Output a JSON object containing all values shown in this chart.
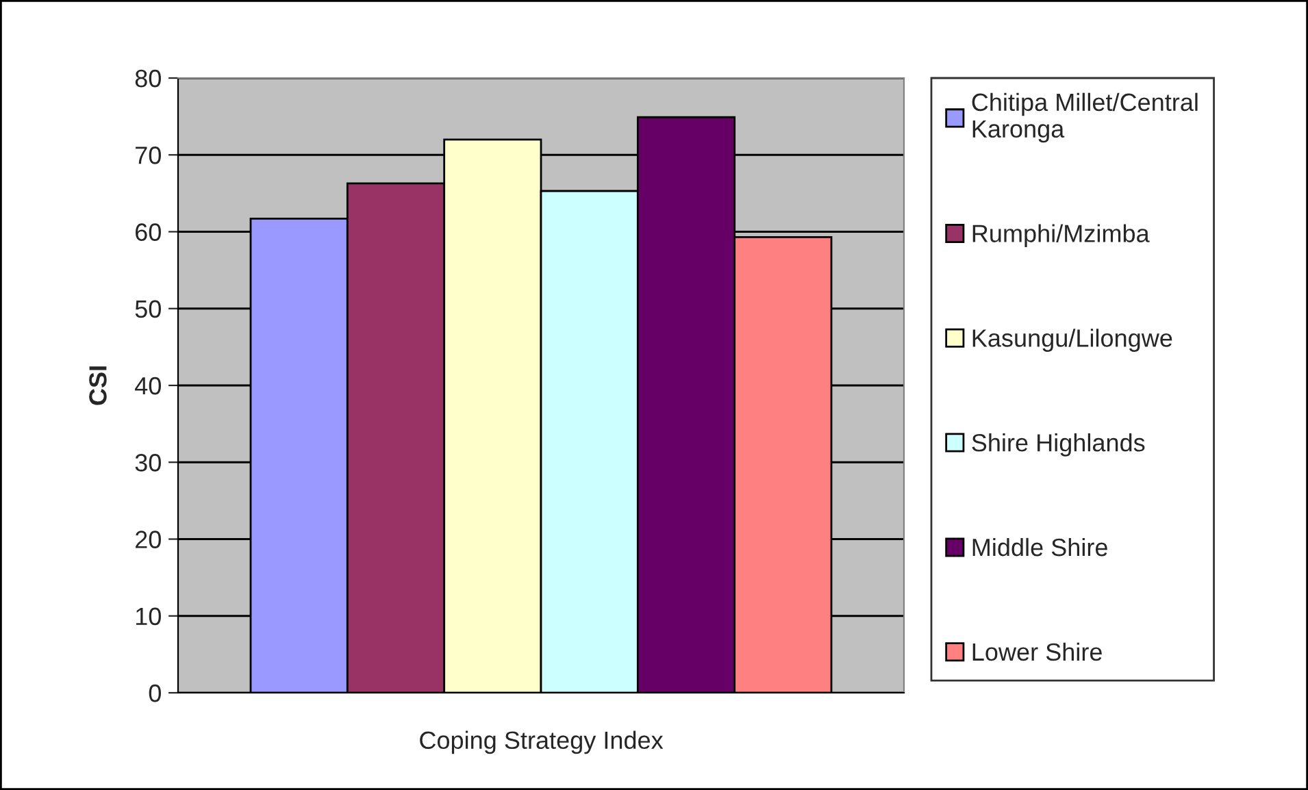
{
  "chart_data": {
    "type": "bar",
    "ylabel": "CSI",
    "categories": [
      "Coping Strategy Index"
    ],
    "series": [
      {
        "name": "Chitipa Millet/Central Karonga",
        "color": "#9999ff",
        "values": [
          61.7
        ]
      },
      {
        "name": "Rumphi/Mzimba",
        "color": "#993366",
        "values": [
          66.3
        ]
      },
      {
        "name": "Kasungu/Lilongwe",
        "color": "#ffffcc",
        "values": [
          72.0
        ]
      },
      {
        "name": "Shire Highlands",
        "color": "#ccffff",
        "values": [
          65.3
        ]
      },
      {
        "name": "Middle Shire",
        "color": "#660066",
        "values": [
          74.9
        ]
      },
      {
        "name": "Lower Shire",
        "color": "#ff8080",
        "values": [
          59.3
        ]
      }
    ],
    "ylim": [
      0,
      80
    ],
    "yticks": [
      0,
      10,
      20,
      30,
      40,
      50,
      60,
      70,
      80
    ],
    "grid": "y",
    "legend": "right"
  }
}
